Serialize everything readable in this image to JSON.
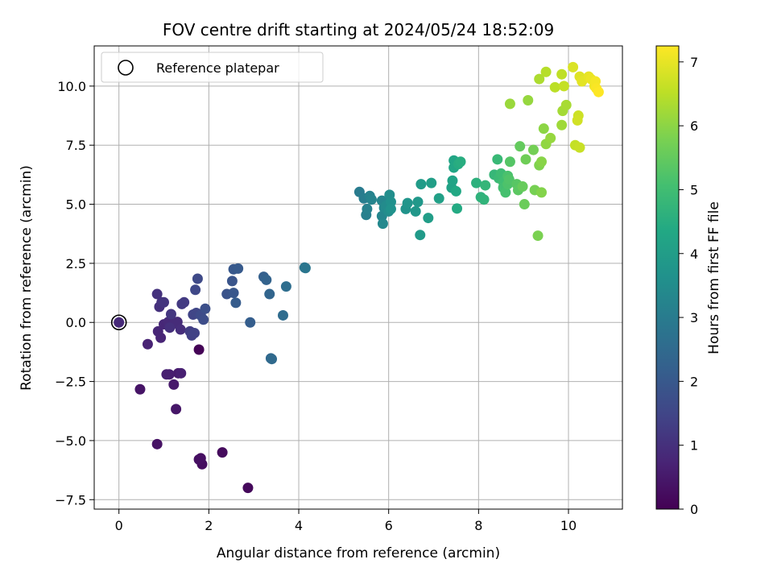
{
  "chart_data": {
    "type": "scatter",
    "title": "FOV centre drift starting at 2024/05/24 18:52:09",
    "xlabel": "Angular distance from reference (arcmin)",
    "ylabel": "Rotation from reference (arcmin)",
    "xlim": [
      -0.55,
      11.2
    ],
    "ylim": [
      -7.9,
      11.7
    ],
    "xticks": [
      "0",
      "2",
      "4",
      "6",
      "8",
      "10"
    ],
    "xtick_values": [
      0,
      2,
      4,
      6,
      8,
      10
    ],
    "yticks": [
      "−7.5",
      "−5.0",
      "−2.5",
      "0.0",
      "2.5",
      "5.0",
      "7.5",
      "10.0"
    ],
    "ytick_values": [
      -7.5,
      -5.0,
      -2.5,
      0.0,
      2.5,
      5.0,
      7.5,
      10.0
    ],
    "grid": true,
    "legend": {
      "position": "top-left",
      "entries": [
        "Reference platepar"
      ]
    },
    "reference_point": {
      "x": 0,
      "y": 0
    },
    "colorbar": {
      "label": "Hours from first FF file",
      "range": [
        0,
        7.25
      ],
      "ticks": [
        "0",
        "1",
        "2",
        "3",
        "4",
        "5",
        "6",
        "7"
      ],
      "tick_values": [
        0,
        1,
        2,
        3,
        4,
        5,
        6,
        7
      ],
      "colormap": "viridis"
    },
    "points": [
      {
        "x": 1.78,
        "y": -1.15,
        "h": 0.05
      },
      {
        "x": 2.87,
        "y": -7.0,
        "h": 0.15
      },
      {
        "x": 2.3,
        "y": -5.5,
        "h": 0.2
      },
      {
        "x": 1.85,
        "y": -6.0,
        "h": 0.25
      },
      {
        "x": 1.82,
        "y": -5.75,
        "h": 0.28
      },
      {
        "x": 1.78,
        "y": -5.8,
        "h": 0.3
      },
      {
        "x": 0.85,
        "y": -5.15,
        "h": 0.35
      },
      {
        "x": 0.47,
        "y": -2.83,
        "h": 0.4
      },
      {
        "x": 1.27,
        "y": -3.67,
        "h": 0.45
      },
      {
        "x": 1.22,
        "y": -2.63,
        "h": 0.5
      },
      {
        "x": 1.32,
        "y": -2.15,
        "h": 0.55
      },
      {
        "x": 1.12,
        "y": -2.2,
        "h": 0.6
      },
      {
        "x": 1.06,
        "y": -2.2,
        "h": 0.62
      },
      {
        "x": 1.38,
        "y": -2.15,
        "h": 0.65
      },
      {
        "x": 0.64,
        "y": -0.92,
        "h": 0.7
      },
      {
        "x": 0.93,
        "y": -0.65,
        "h": 0.75
      },
      {
        "x": 0.87,
        "y": -0.38,
        "h": 0.78
      },
      {
        "x": 1.0,
        "y": -0.08,
        "h": 0.8
      },
      {
        "x": 1.1,
        "y": 0.02,
        "h": 0.85
      },
      {
        "x": 1.22,
        "y": -0.05,
        "h": 0.88
      },
      {
        "x": 1.3,
        "y": 0.02,
        "h": 0.9
      },
      {
        "x": 1.37,
        "y": -0.3,
        "h": 0.95
      },
      {
        "x": 1.13,
        "y": -0.22,
        "h": 1.0
      },
      {
        "x": 0.9,
        "y": 0.66,
        "h": 1.0
      },
      {
        "x": 0.85,
        "y": 1.2,
        "h": 1.05
      },
      {
        "x": 0.95,
        "y": 0.85,
        "h": 1.05
      },
      {
        "x": 1.0,
        "y": 0.85,
        "h": 1.1
      },
      {
        "x": 1.16,
        "y": 0.35,
        "h": 1.15
      },
      {
        "x": 1.4,
        "y": 0.78,
        "h": 1.2
      },
      {
        "x": 1.45,
        "y": 0.85,
        "h": 1.25
      },
      {
        "x": 1.58,
        "y": -0.38,
        "h": 1.3
      },
      {
        "x": 1.62,
        "y": -0.55,
        "h": 1.35
      },
      {
        "x": 1.68,
        "y": -0.45,
        "h": 1.4
      },
      {
        "x": 1.65,
        "y": 0.33,
        "h": 1.45
      },
      {
        "x": 1.72,
        "y": 0.4,
        "h": 1.5
      },
      {
        "x": 1.7,
        "y": 1.38,
        "h": 1.55
      },
      {
        "x": 1.75,
        "y": 1.85,
        "h": 1.6
      },
      {
        "x": 1.82,
        "y": 0.3,
        "h": 1.65
      },
      {
        "x": 1.88,
        "y": 0.12,
        "h": 1.7
      },
      {
        "x": 1.92,
        "y": 0.58,
        "h": 1.75
      },
      {
        "x": 2.4,
        "y": 1.2,
        "h": 1.85
      },
      {
        "x": 2.52,
        "y": 1.75,
        "h": 1.9
      },
      {
        "x": 2.55,
        "y": 1.25,
        "h": 1.95
      },
      {
        "x": 2.55,
        "y": 2.25,
        "h": 2.0
      },
      {
        "x": 2.65,
        "y": 2.28,
        "h": 2.05
      },
      {
        "x": 2.6,
        "y": 0.83,
        "h": 2.1
      },
      {
        "x": 2.92,
        "y": 0.0,
        "h": 2.15
      },
      {
        "x": 3.22,
        "y": 1.93,
        "h": 2.2
      },
      {
        "x": 3.28,
        "y": 1.8,
        "h": 2.3
      },
      {
        "x": 3.35,
        "y": 1.2,
        "h": 2.35
      },
      {
        "x": 3.38,
        "y": -1.52,
        "h": 2.45
      },
      {
        "x": 3.4,
        "y": -1.55,
        "h": 2.5
      },
      {
        "x": 3.65,
        "y": 0.3,
        "h": 2.55
      },
      {
        "x": 3.72,
        "y": 1.52,
        "h": 2.6
      },
      {
        "x": 4.13,
        "y": 2.32,
        "h": 2.8
      },
      {
        "x": 4.15,
        "y": 2.3,
        "h": 2.85
      },
      {
        "x": 5.35,
        "y": 5.52,
        "h": 3.0
      },
      {
        "x": 5.45,
        "y": 5.25,
        "h": 3.05
      },
      {
        "x": 5.5,
        "y": 4.55,
        "h": 3.1
      },
      {
        "x": 5.52,
        "y": 4.8,
        "h": 3.15
      },
      {
        "x": 5.58,
        "y": 5.35,
        "h": 3.2
      },
      {
        "x": 5.62,
        "y": 5.2,
        "h": 3.25
      },
      {
        "x": 5.85,
        "y": 5.15,
        "h": 3.3
      },
      {
        "x": 5.85,
        "y": 4.5,
        "h": 3.3
      },
      {
        "x": 5.87,
        "y": 4.18,
        "h": 3.35
      },
      {
        "x": 5.9,
        "y": 4.85,
        "h": 3.4
      },
      {
        "x": 5.95,
        "y": 4.95,
        "h": 3.45
      },
      {
        "x": 6.0,
        "y": 4.7,
        "h": 3.5
      },
      {
        "x": 6.02,
        "y": 5.4,
        "h": 3.55
      },
      {
        "x": 6.05,
        "y": 5.1,
        "h": 3.6
      },
      {
        "x": 6.05,
        "y": 4.8,
        "h": 3.65
      },
      {
        "x": 6.38,
        "y": 4.8,
        "h": 3.7
      },
      {
        "x": 6.42,
        "y": 5.05,
        "h": 3.75
      },
      {
        "x": 6.6,
        "y": 4.7,
        "h": 3.8
      },
      {
        "x": 6.65,
        "y": 5.1,
        "h": 3.85
      },
      {
        "x": 6.7,
        "y": 3.7,
        "h": 3.9
      },
      {
        "x": 6.72,
        "y": 5.85,
        "h": 3.95
      },
      {
        "x": 6.88,
        "y": 4.42,
        "h": 4.0
      },
      {
        "x": 6.95,
        "y": 5.9,
        "h": 4.05
      },
      {
        "x": 7.12,
        "y": 5.25,
        "h": 4.1
      },
      {
        "x": 7.4,
        "y": 5.7,
        "h": 4.15
      },
      {
        "x": 7.42,
        "y": 6.0,
        "h": 4.2
      },
      {
        "x": 7.45,
        "y": 6.85,
        "h": 4.25
      },
      {
        "x": 7.45,
        "y": 6.55,
        "h": 4.3
      },
      {
        "x": 7.5,
        "y": 5.55,
        "h": 4.35
      },
      {
        "x": 7.52,
        "y": 4.82,
        "h": 4.4
      },
      {
        "x": 7.55,
        "y": 6.7,
        "h": 4.45
      },
      {
        "x": 7.6,
        "y": 6.8,
        "h": 4.5
      },
      {
        "x": 7.95,
        "y": 5.9,
        "h": 4.6
      },
      {
        "x": 8.05,
        "y": 5.3,
        "h": 4.65
      },
      {
        "x": 8.12,
        "y": 5.2,
        "h": 4.7
      },
      {
        "x": 8.15,
        "y": 5.8,
        "h": 4.75
      },
      {
        "x": 8.35,
        "y": 6.25,
        "h": 4.8
      },
      {
        "x": 8.42,
        "y": 6.9,
        "h": 4.85
      },
      {
        "x": 8.45,
        "y": 6.1,
        "h": 4.9
      },
      {
        "x": 8.5,
        "y": 6.3,
        "h": 4.95
      },
      {
        "x": 8.55,
        "y": 5.95,
        "h": 5.0
      },
      {
        "x": 8.55,
        "y": 5.7,
        "h": 5.05
      },
      {
        "x": 8.6,
        "y": 5.5,
        "h": 5.1
      },
      {
        "x": 8.65,
        "y": 6.2,
        "h": 5.15
      },
      {
        "x": 8.65,
        "y": 5.85,
        "h": 5.2
      },
      {
        "x": 8.68,
        "y": 6.05,
        "h": 5.25
      },
      {
        "x": 8.7,
        "y": 6.8,
        "h": 5.3
      },
      {
        "x": 8.85,
        "y": 5.85,
        "h": 5.35
      },
      {
        "x": 8.88,
        "y": 5.6,
        "h": 5.4
      },
      {
        "x": 8.92,
        "y": 7.45,
        "h": 5.5
      },
      {
        "x": 8.98,
        "y": 5.75,
        "h": 5.55
      },
      {
        "x": 9.02,
        "y": 5.0,
        "h": 5.6
      },
      {
        "x": 9.05,
        "y": 6.9,
        "h": 5.65
      },
      {
        "x": 9.22,
        "y": 7.3,
        "h": 5.7
      },
      {
        "x": 9.25,
        "y": 5.6,
        "h": 5.75
      },
      {
        "x": 9.32,
        "y": 3.67,
        "h": 5.8
      },
      {
        "x": 9.35,
        "y": 6.65,
        "h": 5.85
      },
      {
        "x": 9.4,
        "y": 5.5,
        "h": 5.9
      },
      {
        "x": 9.4,
        "y": 6.8,
        "h": 5.95
      },
      {
        "x": 9.45,
        "y": 8.2,
        "h": 6.0
      },
      {
        "x": 9.5,
        "y": 7.55,
        "h": 6.05
      },
      {
        "x": 9.6,
        "y": 7.8,
        "h": 6.1
      },
      {
        "x": 9.1,
        "y": 9.4,
        "h": 6.1
      },
      {
        "x": 8.7,
        "y": 9.25,
        "h": 6.15
      },
      {
        "x": 9.85,
        "y": 8.35,
        "h": 6.2
      },
      {
        "x": 9.87,
        "y": 8.95,
        "h": 6.25
      },
      {
        "x": 9.95,
        "y": 9.2,
        "h": 6.3
      },
      {
        "x": 9.35,
        "y": 10.3,
        "h": 6.35
      },
      {
        "x": 9.5,
        "y": 10.6,
        "h": 6.45
      },
      {
        "x": 9.7,
        "y": 9.95,
        "h": 6.5
      },
      {
        "x": 9.85,
        "y": 10.5,
        "h": 6.55
      },
      {
        "x": 9.9,
        "y": 10.0,
        "h": 6.6
      },
      {
        "x": 10.15,
        "y": 7.5,
        "h": 6.6
      },
      {
        "x": 10.25,
        "y": 7.4,
        "h": 6.65
      },
      {
        "x": 10.22,
        "y": 8.75,
        "h": 6.7
      },
      {
        "x": 10.2,
        "y": 8.55,
        "h": 6.75
      },
      {
        "x": 10.1,
        "y": 10.8,
        "h": 6.85
      },
      {
        "x": 10.25,
        "y": 10.4,
        "h": 6.9
      },
      {
        "x": 10.3,
        "y": 10.2,
        "h": 6.95
      },
      {
        "x": 10.45,
        "y": 10.4,
        "h": 7.0
      },
      {
        "x": 10.5,
        "y": 10.3,
        "h": 7.05
      },
      {
        "x": 10.58,
        "y": 10.0,
        "h": 7.1
      },
      {
        "x": 10.6,
        "y": 10.2,
        "h": 7.15
      },
      {
        "x": 10.62,
        "y": 9.9,
        "h": 7.2
      },
      {
        "x": 10.67,
        "y": 9.75,
        "h": 7.25
      }
    ]
  }
}
